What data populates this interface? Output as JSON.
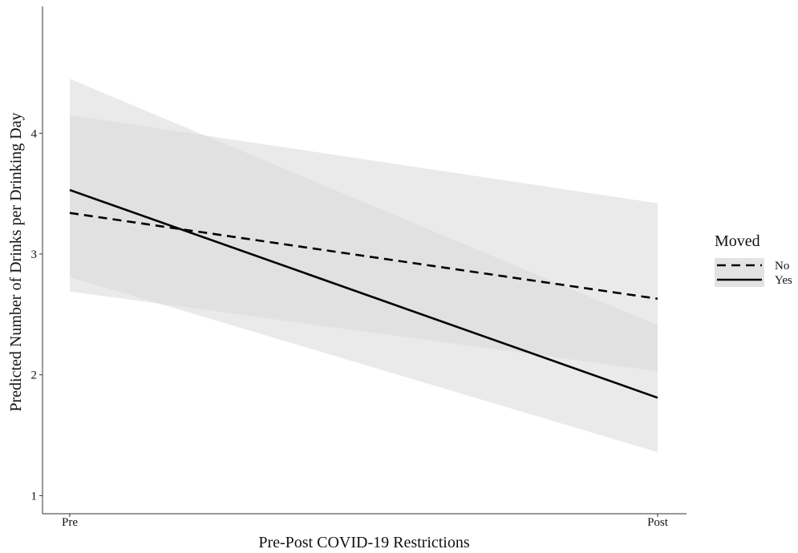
{
  "chart_data": {
    "type": "line",
    "title": "",
    "xlabel": "Pre-Post COVID-19 Restrictions",
    "ylabel": "Predicted Number of Drinks per Drinking Day",
    "categories": [
      "Pre",
      "Post"
    ],
    "yticks": [
      "1",
      "2",
      "3",
      "4"
    ],
    "ylim": [
      0.85,
      5.05
    ],
    "grid": false,
    "legend_position": "right",
    "legend_title": "Moved",
    "series": [
      {
        "name": "No",
        "line_style": "dashed",
        "values": [
          3.34,
          2.63
        ],
        "ci_lower": [
          2.69,
          2.03
        ],
        "ci_upper": [
          4.15,
          3.42
        ]
      },
      {
        "name": "Yes",
        "line_style": "solid",
        "values": [
          3.53,
          1.81
        ],
        "ci_lower": [
          2.81,
          1.36
        ],
        "ci_upper": [
          4.45,
          2.41
        ]
      }
    ],
    "colors": {
      "line": "#000000",
      "ribbon": "#d9d9d9"
    }
  }
}
